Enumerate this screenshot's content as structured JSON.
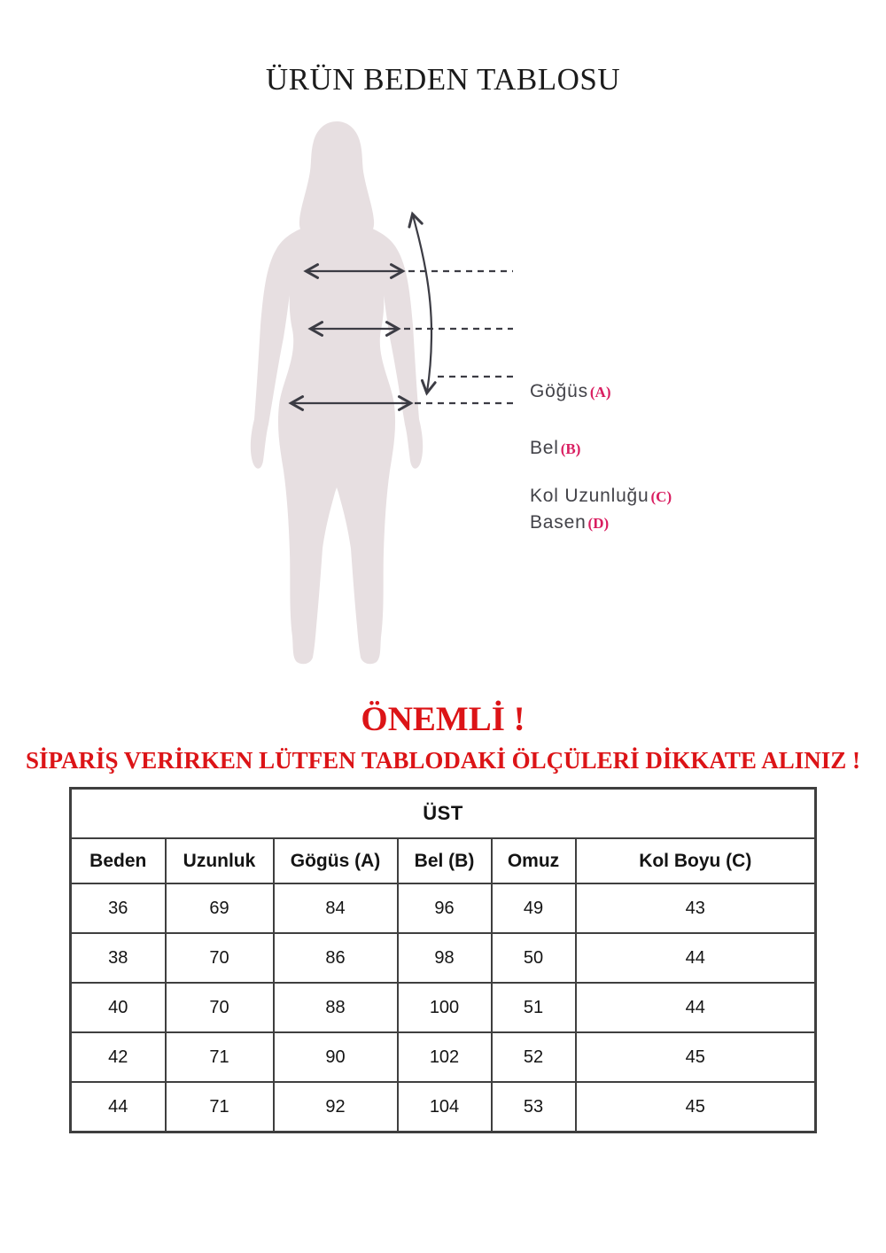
{
  "page": {
    "title": "ÜRÜN BEDEN TABLOSU"
  },
  "diagram": {
    "labels": [
      {
        "name": "Göğüs",
        "letter": "(A)"
      },
      {
        "name": "Bel",
        "letter": "(B)"
      },
      {
        "name": "Kol Uzunluğu",
        "letter": "(C)"
      },
      {
        "name": "Basen",
        "letter": "(D)"
      }
    ],
    "colors": {
      "silhouette": "#e7dfe1",
      "measure_line": "#3c3c44",
      "label_text": "#434349",
      "label_letter": "#d91d60"
    }
  },
  "warning": {
    "heading": "ÖNEMLİ !",
    "subheading": "SİPARİŞ VERİRKEN LÜTFEN TABLODAKİ ÖLÇÜLERİ DİKKATE ALINIZ !",
    "color": "#dc1417"
  },
  "size_table": {
    "group_header": "ÜST",
    "columns": [
      "Beden",
      "Uzunluk",
      "Gögüs (A)",
      "Bel (B)",
      "Omuz",
      "Kol Boyu (C)"
    ],
    "rows": [
      [
        "36",
        "69",
        "84",
        "96",
        "49",
        "43"
      ],
      [
        "38",
        "70",
        "86",
        "98",
        "50",
        "44"
      ],
      [
        "40",
        "70",
        "88",
        "100",
        "51",
        "44"
      ],
      [
        "42",
        "71",
        "90",
        "102",
        "52",
        "45"
      ],
      [
        "44",
        "71",
        "92",
        "104",
        "53",
        "45"
      ]
    ]
  }
}
